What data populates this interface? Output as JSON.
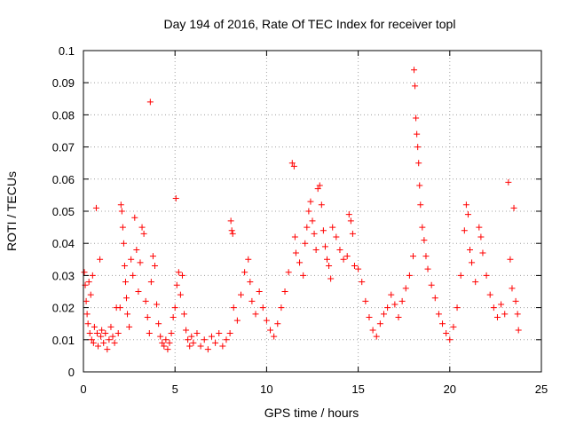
{
  "chart_data": {
    "type": "scatter",
    "title": "Day 194 of 2016, Rate Of TEC Index for receiver topl",
    "xlabel": "GPS time / hours",
    "ylabel": "ROTI / TECUs",
    "xlim": [
      0,
      25
    ],
    "ylim": [
      0,
      0.1
    ],
    "x_ticks": [
      0,
      5,
      10,
      15,
      20,
      25
    ],
    "x_tick_labels": [
      "0",
      "5",
      "10",
      "15",
      "20",
      "25"
    ],
    "y_ticks": [
      0,
      0.01,
      0.02,
      0.03,
      0.04,
      0.05,
      0.06,
      0.07,
      0.08,
      0.09,
      0.1
    ],
    "y_tick_labels": [
      "0",
      "0.01",
      "0.02",
      "0.03",
      "0.04",
      "0.05",
      "0.06",
      "0.07",
      "0.08",
      "0.09",
      "0.1"
    ],
    "grid": true,
    "marker": "+",
    "series": [
      {
        "name": "ROTI",
        "color": "#ff0000",
        "points": [
          [
            0.05,
            0.031
          ],
          [
            0.1,
            0.027
          ],
          [
            0.15,
            0.022
          ],
          [
            0.2,
            0.018
          ],
          [
            0.25,
            0.015
          ],
          [
            0.3,
            0.028
          ],
          [
            0.35,
            0.012
          ],
          [
            0.4,
            0.024
          ],
          [
            0.45,
            0.01
          ],
          [
            0.5,
            0.03
          ],
          [
            0.55,
            0.009
          ],
          [
            0.6,
            0.014
          ],
          [
            0.7,
            0.051
          ],
          [
            0.75,
            0.012
          ],
          [
            0.8,
            0.008
          ],
          [
            0.9,
            0.035
          ],
          [
            0.95,
            0.011
          ],
          [
            1.0,
            0.013
          ],
          [
            1.1,
            0.009
          ],
          [
            1.2,
            0.012
          ],
          [
            1.3,
            0.007
          ],
          [
            1.4,
            0.01
          ],
          [
            1.5,
            0.014
          ],
          [
            1.6,
            0.011
          ],
          [
            1.7,
            0.009
          ],
          [
            1.8,
            0.02
          ],
          [
            1.9,
            0.012
          ],
          [
            2.0,
            0.02
          ],
          [
            2.05,
            0.052
          ],
          [
            2.1,
            0.05
          ],
          [
            2.15,
            0.045
          ],
          [
            2.2,
            0.04
          ],
          [
            2.25,
            0.033
          ],
          [
            2.3,
            0.028
          ],
          [
            2.35,
            0.023
          ],
          [
            2.4,
            0.018
          ],
          [
            2.5,
            0.014
          ],
          [
            2.6,
            0.035
          ],
          [
            2.7,
            0.03
          ],
          [
            2.8,
            0.048
          ],
          [
            2.9,
            0.038
          ],
          [
            3.0,
            0.025
          ],
          [
            3.1,
            0.034
          ],
          [
            3.2,
            0.045
          ],
          [
            3.3,
            0.043
          ],
          [
            3.4,
            0.022
          ],
          [
            3.5,
            0.017
          ],
          [
            3.6,
            0.012
          ],
          [
            3.65,
            0.084
          ],
          [
            3.7,
            0.028
          ],
          [
            3.8,
            0.036
          ],
          [
            3.9,
            0.033
          ],
          [
            4.0,
            0.021
          ],
          [
            4.1,
            0.015
          ],
          [
            4.2,
            0.011
          ],
          [
            4.3,
            0.009
          ],
          [
            4.4,
            0.008
          ],
          [
            4.5,
            0.01
          ],
          [
            4.6,
            0.007
          ],
          [
            4.7,
            0.009
          ],
          [
            4.8,
            0.012
          ],
          [
            4.9,
            0.017
          ],
          [
            5.0,
            0.02
          ],
          [
            5.05,
            0.054
          ],
          [
            5.1,
            0.027
          ],
          [
            5.2,
            0.031
          ],
          [
            5.3,
            0.024
          ],
          [
            5.4,
            0.03
          ],
          [
            5.5,
            0.018
          ],
          [
            5.6,
            0.013
          ],
          [
            5.7,
            0.01
          ],
          [
            5.8,
            0.008
          ],
          [
            5.9,
            0.011
          ],
          [
            6.0,
            0.009
          ],
          [
            6.2,
            0.012
          ],
          [
            6.4,
            0.008
          ],
          [
            6.6,
            0.01
          ],
          [
            6.8,
            0.007
          ],
          [
            7.0,
            0.011
          ],
          [
            7.2,
            0.009
          ],
          [
            7.4,
            0.012
          ],
          [
            7.6,
            0.008
          ],
          [
            7.8,
            0.01
          ],
          [
            8.0,
            0.012
          ],
          [
            8.05,
            0.047
          ],
          [
            8.1,
            0.044
          ],
          [
            8.15,
            0.043
          ],
          [
            8.2,
            0.02
          ],
          [
            8.4,
            0.016
          ],
          [
            8.6,
            0.024
          ],
          [
            8.8,
            0.031
          ],
          [
            9.0,
            0.035
          ],
          [
            9.1,
            0.028
          ],
          [
            9.2,
            0.022
          ],
          [
            9.4,
            0.018
          ],
          [
            9.6,
            0.025
          ],
          [
            9.8,
            0.02
          ],
          [
            10.0,
            0.016
          ],
          [
            10.2,
            0.013
          ],
          [
            10.4,
            0.011
          ],
          [
            10.6,
            0.015
          ],
          [
            10.8,
            0.02
          ],
          [
            11.0,
            0.025
          ],
          [
            11.2,
            0.031
          ],
          [
            11.4,
            0.065
          ],
          [
            11.5,
            0.064
          ],
          [
            11.55,
            0.042
          ],
          [
            11.6,
            0.037
          ],
          [
            11.8,
            0.034
          ],
          [
            12.0,
            0.03
          ],
          [
            12.1,
            0.04
          ],
          [
            12.2,
            0.045
          ],
          [
            12.3,
            0.05
          ],
          [
            12.4,
            0.053
          ],
          [
            12.5,
            0.047
          ],
          [
            12.6,
            0.043
          ],
          [
            12.7,
            0.038
          ],
          [
            12.8,
            0.057
          ],
          [
            12.9,
            0.058
          ],
          [
            13.0,
            0.052
          ],
          [
            13.1,
            0.044
          ],
          [
            13.2,
            0.039
          ],
          [
            13.3,
            0.035
          ],
          [
            13.4,
            0.033
          ],
          [
            13.5,
            0.029
          ],
          [
            13.6,
            0.045
          ],
          [
            13.8,
            0.042
          ],
          [
            14.0,
            0.038
          ],
          [
            14.2,
            0.035
          ],
          [
            14.4,
            0.036
          ],
          [
            14.5,
            0.049
          ],
          [
            14.6,
            0.047
          ],
          [
            14.7,
            0.043
          ],
          [
            14.8,
            0.033
          ],
          [
            15.0,
            0.032
          ],
          [
            15.2,
            0.028
          ],
          [
            15.4,
            0.022
          ],
          [
            15.6,
            0.017
          ],
          [
            15.8,
            0.013
          ],
          [
            16.0,
            0.011
          ],
          [
            16.2,
            0.015
          ],
          [
            16.4,
            0.018
          ],
          [
            16.6,
            0.02
          ],
          [
            16.8,
            0.024
          ],
          [
            17.0,
            0.021
          ],
          [
            17.2,
            0.017
          ],
          [
            17.4,
            0.022
          ],
          [
            17.6,
            0.026
          ],
          [
            17.8,
            0.03
          ],
          [
            18.0,
            0.036
          ],
          [
            18.05,
            0.094
          ],
          [
            18.1,
            0.089
          ],
          [
            18.15,
            0.079
          ],
          [
            18.2,
            0.074
          ],
          [
            18.25,
            0.07
          ],
          [
            18.3,
            0.065
          ],
          [
            18.35,
            0.058
          ],
          [
            18.4,
            0.052
          ],
          [
            18.5,
            0.045
          ],
          [
            18.6,
            0.041
          ],
          [
            18.7,
            0.036
          ],
          [
            18.8,
            0.032
          ],
          [
            19.0,
            0.027
          ],
          [
            19.2,
            0.023
          ],
          [
            19.4,
            0.018
          ],
          [
            19.6,
            0.015
          ],
          [
            19.8,
            0.012
          ],
          [
            20.0,
            0.01
          ],
          [
            20.2,
            0.014
          ],
          [
            20.4,
            0.02
          ],
          [
            20.6,
            0.03
          ],
          [
            20.8,
            0.044
          ],
          [
            20.9,
            0.052
          ],
          [
            21.0,
            0.049
          ],
          [
            21.1,
            0.038
          ],
          [
            21.2,
            0.034
          ],
          [
            21.4,
            0.028
          ],
          [
            21.6,
            0.045
          ],
          [
            21.7,
            0.042
          ],
          [
            21.8,
            0.037
          ],
          [
            22.0,
            0.03
          ],
          [
            22.2,
            0.024
          ],
          [
            22.4,
            0.02
          ],
          [
            22.6,
            0.017
          ],
          [
            22.8,
            0.021
          ],
          [
            23.0,
            0.018
          ],
          [
            23.2,
            0.059
          ],
          [
            23.3,
            0.035
          ],
          [
            23.4,
            0.026
          ],
          [
            23.5,
            0.051
          ],
          [
            23.6,
            0.022
          ],
          [
            23.7,
            0.018
          ],
          [
            23.75,
            0.013
          ]
        ]
      }
    ]
  }
}
